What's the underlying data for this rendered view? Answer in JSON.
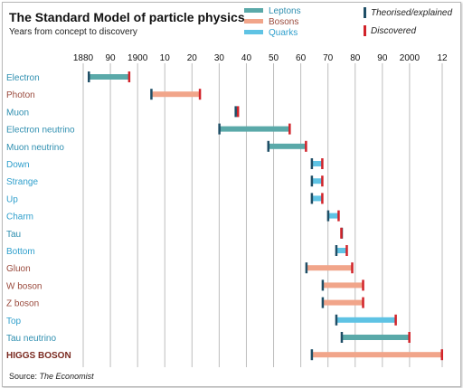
{
  "title": "The Standard Model of particle physics",
  "subtitle": "Years from concept to discovery",
  "source_label": "Source:",
  "source_name": "The Economist",
  "colors": {
    "Leptons": "#5aa9a9",
    "Bosons": "#f1a58a",
    "Quarks": "#5fc3e4",
    "theorised_marker": "#1f4e66",
    "discovered_marker": "#d1232a",
    "lepton_label": "#2f8fb0",
    "boson_label": "#9a4a3d",
    "quark_label": "#2f9fcc",
    "higgs_label": "#7a2a20"
  },
  "chart_data": {
    "type": "range-bar",
    "title": "The Standard Model of particle physics",
    "subtitle": "Years from concept to discovery",
    "x_ticks": [
      {
        "value": 1880,
        "label": "1880"
      },
      {
        "value": 1890,
        "label": "90"
      },
      {
        "value": 1900,
        "label": "1900"
      },
      {
        "value": 1910,
        "label": "10"
      },
      {
        "value": 1920,
        "label": "20"
      },
      {
        "value": 1930,
        "label": "30"
      },
      {
        "value": 1940,
        "label": "40"
      },
      {
        "value": 1950,
        "label": "50"
      },
      {
        "value": 1960,
        "label": "60"
      },
      {
        "value": 1970,
        "label": "70"
      },
      {
        "value": 1980,
        "label": "80"
      },
      {
        "value": 1990,
        "label": "90"
      },
      {
        "value": 2000,
        "label": "2000"
      },
      {
        "value": 2012,
        "label": "12"
      }
    ],
    "xlim": [
      1880,
      2012
    ],
    "legend": {
      "groups": [
        "Leptons",
        "Bosons",
        "Quarks"
      ],
      "theorised_label": "Theorised/explained",
      "discovered_label": "Discovered"
    },
    "particles": [
      {
        "name": "Electron",
        "group": "Leptons",
        "theorised": 1882,
        "discovered": 1897
      },
      {
        "name": "Photon",
        "group": "Bosons",
        "theorised": 1905,
        "discovered": 1923
      },
      {
        "name": "Muon",
        "group": "Leptons",
        "theorised": 1936,
        "discovered": 1937
      },
      {
        "name": "Electron neutrino",
        "group": "Leptons",
        "theorised": 1930,
        "discovered": 1956
      },
      {
        "name": "Muon neutrino",
        "group": "Leptons",
        "theorised": 1948,
        "discovered": 1962
      },
      {
        "name": "Down",
        "group": "Quarks",
        "theorised": 1964,
        "discovered": 1968
      },
      {
        "name": "Strange",
        "group": "Quarks",
        "theorised": 1964,
        "discovered": 1968
      },
      {
        "name": "Up",
        "group": "Quarks",
        "theorised": 1964,
        "discovered": 1968
      },
      {
        "name": "Charm",
        "group": "Quarks",
        "theorised": 1970,
        "discovered": 1974
      },
      {
        "name": "Tau",
        "group": "Leptons",
        "theorised": 1975,
        "discovered": 1975
      },
      {
        "name": "Bottom",
        "group": "Quarks",
        "theorised": 1973,
        "discovered": 1977
      },
      {
        "name": "Gluon",
        "group": "Bosons",
        "theorised": 1962,
        "discovered": 1979
      },
      {
        "name": "W boson",
        "group": "Bosons",
        "theorised": 1968,
        "discovered": 1983
      },
      {
        "name": "Z boson",
        "group": "Bosons",
        "theorised": 1968,
        "discovered": 1983
      },
      {
        "name": "Top",
        "group": "Quarks",
        "theorised": 1973,
        "discovered": 1995
      },
      {
        "name": "Tau neutrino",
        "group": "Leptons",
        "theorised": 1975,
        "discovered": 2000
      },
      {
        "name": "HIGGS BOSON",
        "group": "Bosons",
        "theorised": 1964,
        "discovered": 2012,
        "highlight": true
      }
    ],
    "grid": "vertical"
  }
}
